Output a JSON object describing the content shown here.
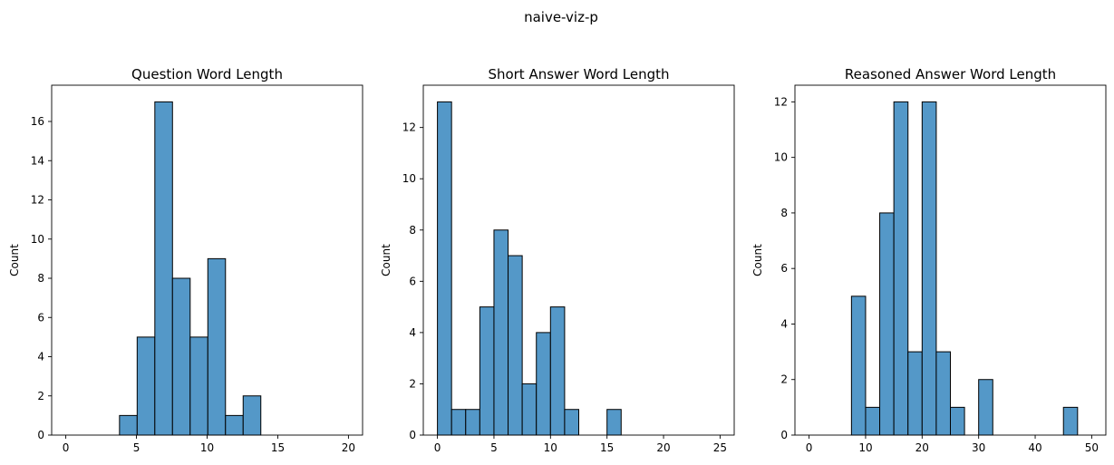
{
  "figure": {
    "title": "naive-viz-p"
  },
  "chart_data": [
    {
      "type": "bar",
      "title": "Question Word Length",
      "xlabel": "",
      "ylabel": "Count",
      "xlim": [
        -1,
        21
      ],
      "ylim": [
        0,
        17.85
      ],
      "xticks": [
        0,
        5,
        10,
        15,
        20
      ],
      "yticks": [
        0,
        2,
        4,
        6,
        8,
        10,
        12,
        14,
        16
      ],
      "bins": [
        {
          "x0": 3.8,
          "x1": 5.05,
          "count": 1
        },
        {
          "x0": 5.05,
          "x1": 6.3,
          "count": 5
        },
        {
          "x0": 6.3,
          "x1": 7.55,
          "count": 17
        },
        {
          "x0": 7.55,
          "x1": 8.8,
          "count": 8
        },
        {
          "x0": 8.8,
          "x1": 10.05,
          "count": 5
        },
        {
          "x0": 10.05,
          "x1": 11.3,
          "count": 9
        },
        {
          "x0": 11.3,
          "x1": 12.55,
          "count": 1
        },
        {
          "x0": 12.55,
          "x1": 13.8,
          "count": 2
        }
      ],
      "color": "#5498c8"
    },
    {
      "type": "bar",
      "title": "Short Answer Word Length",
      "xlabel": "",
      "ylabel": "Count",
      "xlim": [
        -1.25,
        26.25
      ],
      "ylim": [
        0,
        13.65
      ],
      "xticks": [
        0,
        5,
        10,
        15,
        20,
        25
      ],
      "yticks": [
        0,
        2,
        4,
        6,
        8,
        10,
        12
      ],
      "bins": [
        {
          "x0": 0,
          "x1": 1.25,
          "count": 13
        },
        {
          "x0": 1.25,
          "x1": 2.5,
          "count": 1
        },
        {
          "x0": 2.5,
          "x1": 3.75,
          "count": 1
        },
        {
          "x0": 3.75,
          "x1": 5.0,
          "count": 5
        },
        {
          "x0": 5.0,
          "x1": 6.25,
          "count": 8
        },
        {
          "x0": 6.25,
          "x1": 7.5,
          "count": 7
        },
        {
          "x0": 7.5,
          "x1": 8.75,
          "count": 2
        },
        {
          "x0": 8.75,
          "x1": 10.0,
          "count": 4
        },
        {
          "x0": 10.0,
          "x1": 11.25,
          "count": 5
        },
        {
          "x0": 11.25,
          "x1": 12.5,
          "count": 1
        },
        {
          "x0": 15.0,
          "x1": 16.25,
          "count": 1
        }
      ],
      "color": "#5498c8"
    },
    {
      "type": "bar",
      "title": "Reasoned Answer Word Length",
      "xlabel": "",
      "ylabel": "Count",
      "xlim": [
        -2.5,
        52.5
      ],
      "ylim": [
        0,
        12.6
      ],
      "xticks": [
        0,
        10,
        20,
        30,
        40,
        50
      ],
      "yticks": [
        0,
        2,
        4,
        6,
        8,
        10,
        12
      ],
      "bins": [
        {
          "x0": 7.5,
          "x1": 10.0,
          "count": 5
        },
        {
          "x0": 10.0,
          "x1": 12.5,
          "count": 1
        },
        {
          "x0": 12.5,
          "x1": 15.0,
          "count": 8
        },
        {
          "x0": 15.0,
          "x1": 17.5,
          "count": 12
        },
        {
          "x0": 17.5,
          "x1": 20.0,
          "count": 3
        },
        {
          "x0": 20.0,
          "x1": 22.5,
          "count": 12
        },
        {
          "x0": 22.5,
          "x1": 25.0,
          "count": 3
        },
        {
          "x0": 25.0,
          "x1": 27.5,
          "count": 1
        },
        {
          "x0": 30.0,
          "x1": 32.5,
          "count": 2
        },
        {
          "x0": 45.0,
          "x1": 47.5,
          "count": 1
        }
      ],
      "color": "#5498c8"
    }
  ]
}
